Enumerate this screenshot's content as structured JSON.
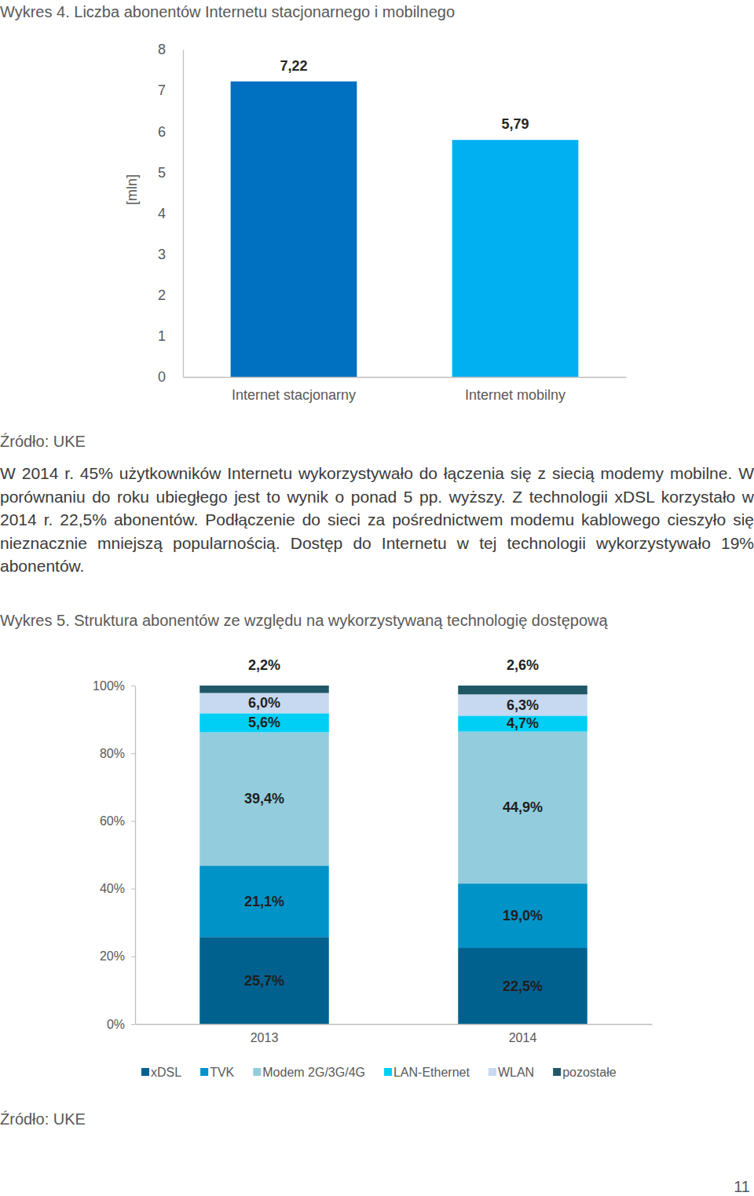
{
  "chart_data": [
    {
      "type": "bar",
      "title": "Wykres 4. Liczba abonentów Internetu stacjonarnego i mobilnego",
      "ylabel": "[mln]",
      "categories": [
        "Internet stacjonarny",
        "Internet mobilny"
      ],
      "values": [
        7.22,
        5.79
      ],
      "value_labels": [
        "7,22",
        "5,79"
      ],
      "colors": [
        "#0070c0",
        "#00b0f0"
      ],
      "ylim": [
        0,
        8
      ],
      "yticks": [
        0,
        1,
        2,
        3,
        4,
        5,
        6,
        7,
        8
      ],
      "data_labels": true,
      "source": "Źródło: UKE"
    },
    {
      "type": "bar",
      "stacked": true,
      "title": "Wykres 5. Struktura abonentów ze względu na wykorzystywaną technologię dostępową",
      "categories": [
        "2013",
        "2014"
      ],
      "series": [
        {
          "name": "xDSL",
          "color": "#00618f",
          "values": [
            25.7,
            22.5
          ],
          "value_labels": [
            "25,7%",
            "22,5%"
          ]
        },
        {
          "name": "TVK",
          "color": "#0093c8",
          "values": [
            21.1,
            19.0
          ],
          "value_labels": [
            "21,1%",
            "19,0%"
          ]
        },
        {
          "name": "Modem 2G/3G/4G",
          "color": "#93cddd",
          "values": [
            39.4,
            44.9
          ],
          "value_labels": [
            "39,4%",
            "44,9%"
          ]
        },
        {
          "name": "LAN-Ethernet",
          "color": "#00cff5",
          "values": [
            5.6,
            4.7
          ],
          "value_labels": [
            "5,6%",
            "4,7%"
          ]
        },
        {
          "name": "WLAN",
          "color": "#c6d9f1",
          "values": [
            6.0,
            6.3
          ],
          "value_labels": [
            "6,0%",
            "6,3%"
          ]
        },
        {
          "name": "pozostałe",
          "color": "#215868",
          "values": [
            2.2,
            2.6
          ],
          "value_labels": [
            "2,2%",
            "2,6%"
          ]
        }
      ],
      "ylim": [
        0,
        100
      ],
      "yticks": [
        {
          "value": 0,
          "label": "0%"
        },
        {
          "value": 20,
          "label": "20%"
        },
        {
          "value": 40,
          "label": "40%"
        },
        {
          "value": 60,
          "label": "60%"
        },
        {
          "value": 80,
          "label": "80%"
        },
        {
          "value": 100,
          "label": "100%"
        }
      ],
      "data_labels": true,
      "legend": "bottom",
      "source": "Źródło: UKE"
    }
  ],
  "page": {
    "paragraph": "W 2014 r. 45% użytkowników Internetu wykorzystywało do łączenia się z siecią modemy mobilne. W porównaniu do roku ubiegłego jest to wynik o ponad 5 pp. wyższy. Z technologii xDSL korzystało w 2014 r. 22,5% abonentów. Podłączenie do sieci za pośrednictwem modemu kablowego cieszyło się nieznacznie mniejszą popularnością. Dostęp do Internetu w tej technologii wykorzystywało 19% abonentów.",
    "page_number": 11
  }
}
